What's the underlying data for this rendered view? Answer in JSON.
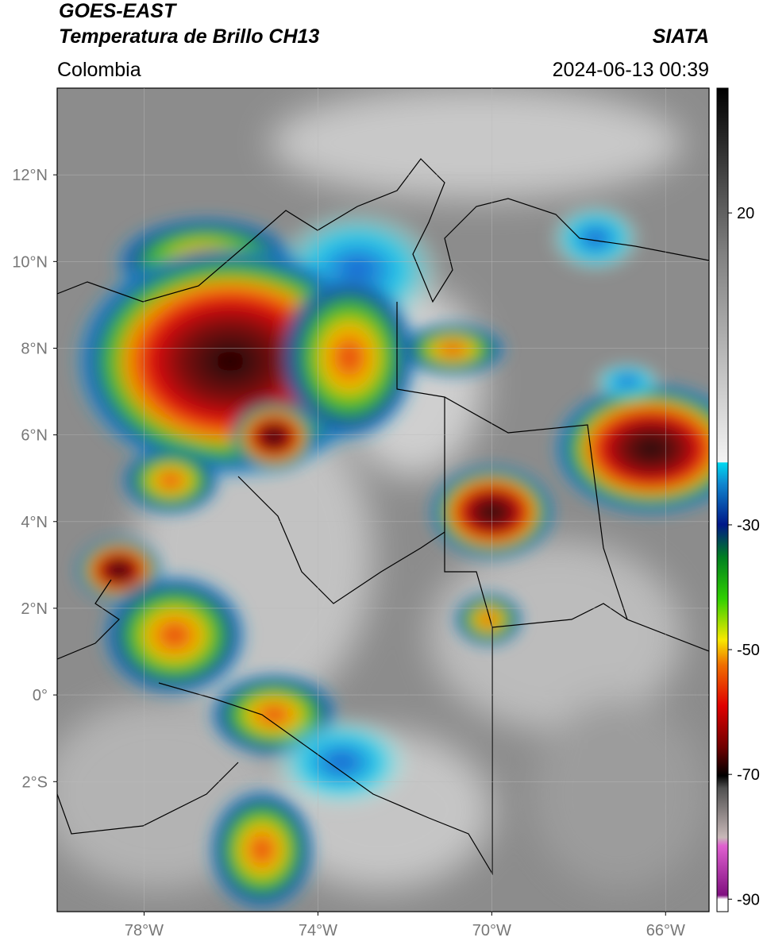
{
  "header": {
    "title": "GOES-EAST",
    "subtitle": "Temperatura de Brillo CH13",
    "source": "SIATA",
    "region": "Colombia",
    "timestamp": "2024-06-13 00:39"
  },
  "map": {
    "lonlim": [
      -80,
      -65
    ],
    "latlim": [
      -5,
      14
    ],
    "grid": true,
    "xticks": [
      {
        "value": -78,
        "label": "78°W"
      },
      {
        "value": -74,
        "label": "74°W"
      },
      {
        "value": -70,
        "label": "70°W"
      },
      {
        "value": -66,
        "label": "66°W"
      }
    ],
    "yticks": [
      {
        "value": 12,
        "label": "12°N"
      },
      {
        "value": 10,
        "label": "10°N"
      },
      {
        "value": 8,
        "label": "8°N"
      },
      {
        "value": 6,
        "label": "6°N"
      },
      {
        "value": 4,
        "label": "4°N"
      },
      {
        "value": 2,
        "label": "2°N"
      },
      {
        "value": 0,
        "label": "0°"
      },
      {
        "value": -2,
        "label": "2°S"
      }
    ]
  },
  "colorbar": {
    "lim": [
      -92,
      40
    ],
    "ticks": [
      20,
      -30,
      -50,
      -70,
      -90
    ]
  }
}
